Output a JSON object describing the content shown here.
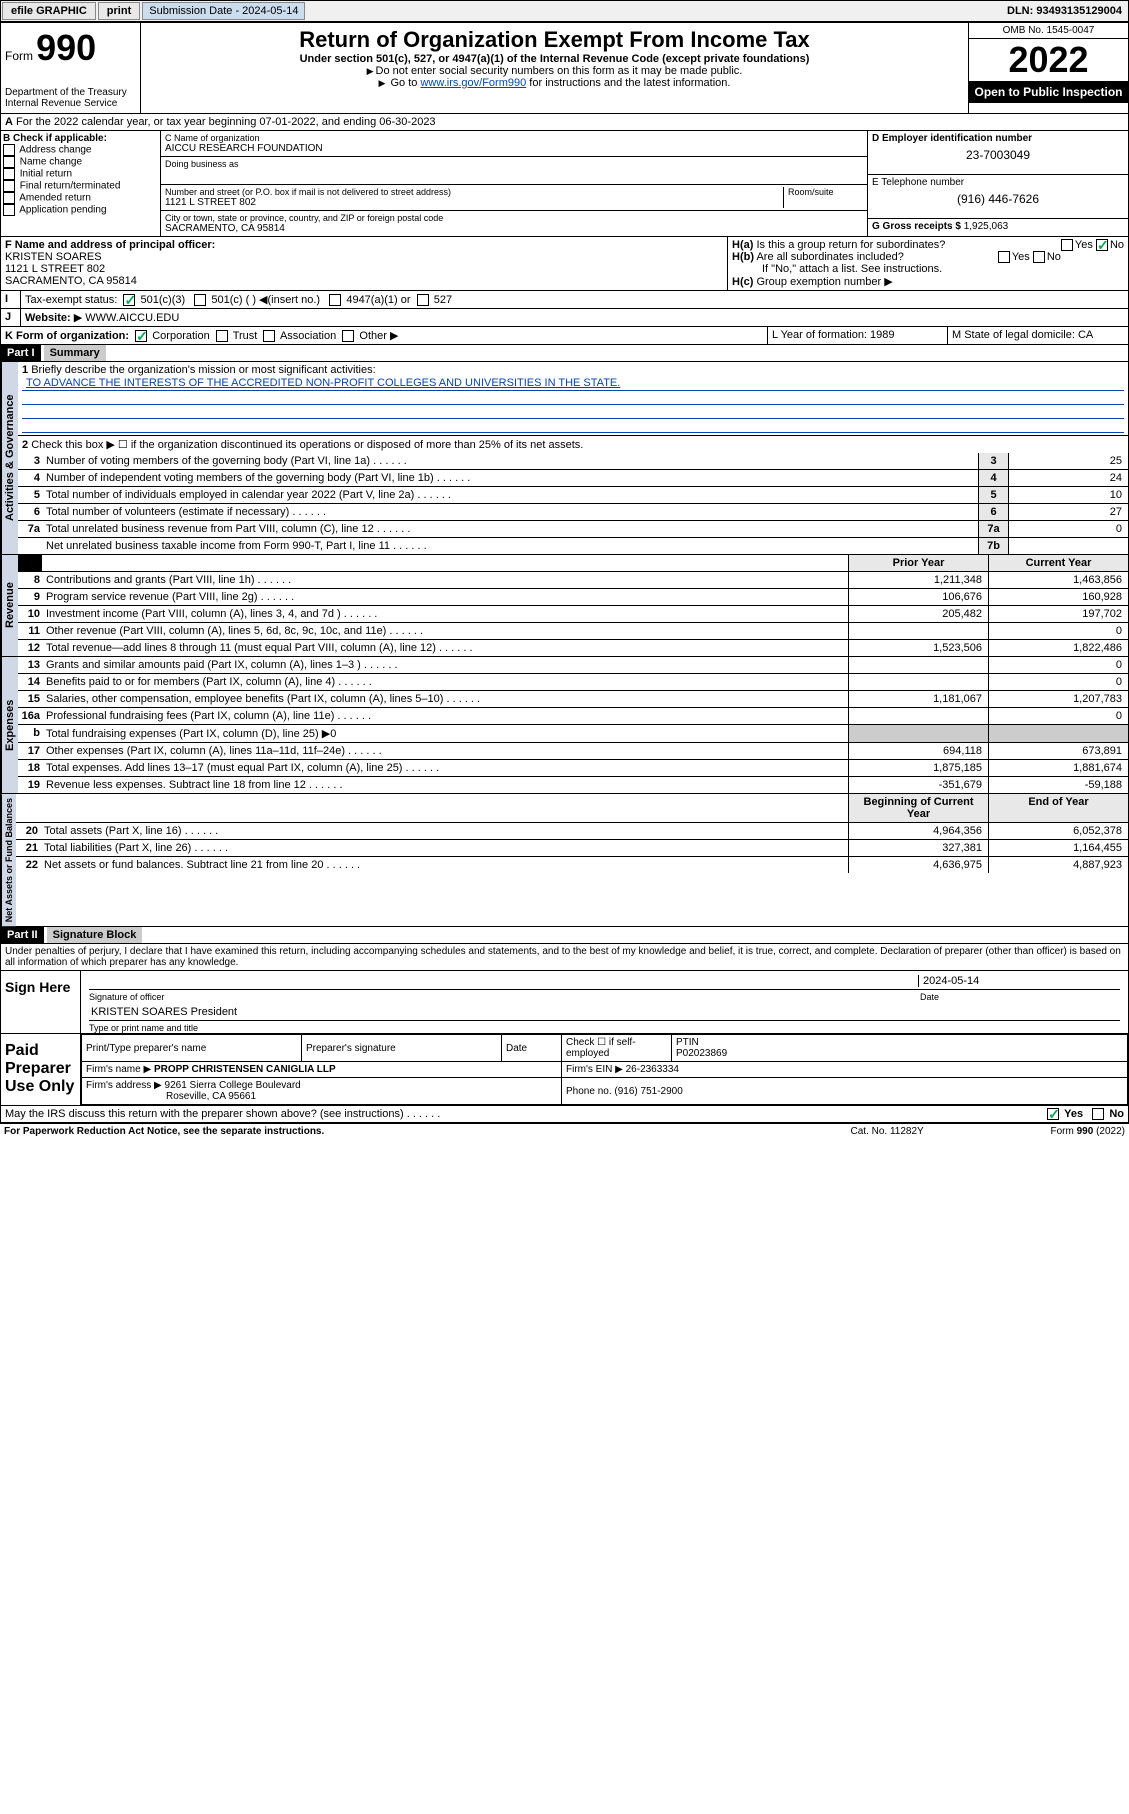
{
  "toolbar": {
    "efile": "efile GRAPHIC",
    "print": "print",
    "sub_date_label": "Submission Date - 2024-05-14",
    "dln": "DLN: 93493135129004"
  },
  "header": {
    "form": "Form",
    "formnum": "990",
    "dept": "Department of the Treasury",
    "irs": "Internal Revenue Service",
    "title": "Return of Organization Exempt From Income Tax",
    "sub1": "Under section 501(c), 527, or 4947(a)(1) of the Internal Revenue Code (except private foundations)",
    "sub2": "Do not enter social security numbers on this form as it may be made public.",
    "sub3_pre": "Go to ",
    "sub3_link": "www.irs.gov/Form990",
    "sub3_post": " for instructions and the latest information.",
    "omb": "OMB No. 1545-0047",
    "year": "2022",
    "open": "Open to Public Inspection"
  },
  "period": {
    "line_a": "For the 2022 calendar year, or tax year beginning 07-01-2022",
    "line_a2": ", and ending 06-30-2023"
  },
  "boxB": {
    "label": "B Check if applicable:",
    "items": [
      "Address change",
      "Name change",
      "Initial return",
      "Final return/terminated",
      "Amended return",
      "Application pending"
    ]
  },
  "boxC": {
    "name_lbl": "C Name of organization",
    "name": "AICCU RESEARCH FOUNDATION",
    "dba_lbl": "Doing business as",
    "addr_lbl": "Number and street (or P.O. box if mail is not delivered to street address)",
    "room_lbl": "Room/suite",
    "addr": "1121 L STREET 802",
    "city_lbl": "City or town, state or province, country, and ZIP or foreign postal code",
    "city": "SACRAMENTO, CA  95814"
  },
  "boxD": {
    "lbl": "D Employer identification number",
    "val": "23-7003049"
  },
  "boxE": {
    "lbl": "E Telephone number",
    "val": "(916) 446-7626"
  },
  "boxG": {
    "lbl": "G Gross receipts $",
    "val": "1,925,063"
  },
  "boxF": {
    "lbl": "F Name and address of principal officer:",
    "name": "KRISTEN SOARES",
    "addr1": "1121 L STREET 802",
    "addr2": "SACRAMENTO, CA  95814"
  },
  "boxH": {
    "ha": "Is this a group return for subordinates?",
    "hb": "Are all subordinates included?",
    "hn": "If \"No,\" attach a list. See instructions.",
    "hc": "Group exemption number",
    "yes": "Yes",
    "no": "No"
  },
  "boxI": {
    "lbl": "Tax-exempt status:",
    "a": "501(c)(3)",
    "b": "501(c) (  )",
    "b2": "(insert no.)",
    "c": "4947(a)(1) or",
    "d": "527"
  },
  "boxJ": {
    "lbl": "Website:",
    "val": "WWW.AICCU.EDU"
  },
  "boxK": {
    "lbl": "K Form of organization:",
    "a": "Corporation",
    "b": "Trust",
    "c": "Association",
    "d": "Other"
  },
  "boxL": {
    "lbl": "L Year of formation: 1989"
  },
  "boxM": {
    "lbl": "M State of legal domicile: CA"
  },
  "part1": {
    "hdr": "Part I",
    "title": "Summary",
    "q1a": "Briefly describe the organization's mission or most significant activities:",
    "q1b": "TO ADVANCE THE INTERESTS OF THE ACCREDITED NON-PROFIT COLLEGES AND UNIVERSITIES IN THE STATE.",
    "q2": "Check this box ▶ ☐ if the organization discontinued its operations or disposed of more than 25% of its net assets.",
    "lines_gov": [
      {
        "n": "3",
        "t": "Number of voting members of the governing body (Part VI, line 1a)",
        "b": "3",
        "v": "25"
      },
      {
        "n": "4",
        "t": "Number of independent voting members of the governing body (Part VI, line 1b)",
        "b": "4",
        "v": "24"
      },
      {
        "n": "5",
        "t": "Total number of individuals employed in calendar year 2022 (Part V, line 2a)",
        "b": "5",
        "v": "10"
      },
      {
        "n": "6",
        "t": "Total number of volunteers (estimate if necessary)",
        "b": "6",
        "v": "27"
      },
      {
        "n": "7a",
        "t": "Total unrelated business revenue from Part VIII, column (C), line 12",
        "b": "7a",
        "v": "0"
      },
      {
        "n": "",
        "t": "Net unrelated business taxable income from Form 990-T, Part I, line 11",
        "b": "7b",
        "v": ""
      }
    ],
    "col_prior": "Prior Year",
    "col_curr": "Current Year",
    "lines_rev": [
      {
        "n": "8",
        "t": "Contributions and grants (Part VIII, line 1h)",
        "p": "1,211,348",
        "c": "1,463,856"
      },
      {
        "n": "9",
        "t": "Program service revenue (Part VIII, line 2g)",
        "p": "106,676",
        "c": "160,928"
      },
      {
        "n": "10",
        "t": "Investment income (Part VIII, column (A), lines 3, 4, and 7d )",
        "p": "205,482",
        "c": "197,702"
      },
      {
        "n": "11",
        "t": "Other revenue (Part VIII, column (A), lines 5, 6d, 8c, 9c, 10c, and 11e)",
        "p": "",
        "c": "0"
      },
      {
        "n": "12",
        "t": "Total revenue—add lines 8 through 11 (must equal Part VIII, column (A), line 12)",
        "p": "1,523,506",
        "c": "1,822,486"
      }
    ],
    "lines_exp": [
      {
        "n": "13",
        "t": "Grants and similar amounts paid (Part IX, column (A), lines 1–3 )",
        "p": "",
        "c": "0"
      },
      {
        "n": "14",
        "t": "Benefits paid to or for members (Part IX, column (A), line 4)",
        "p": "",
        "c": "0"
      },
      {
        "n": "15",
        "t": "Salaries, other compensation, employee benefits (Part IX, column (A), lines 5–10)",
        "p": "1,181,067",
        "c": "1,207,783"
      },
      {
        "n": "16a",
        "t": "Professional fundraising fees (Part IX, column (A), line 11e)",
        "p": "",
        "c": "0"
      },
      {
        "n": "b",
        "t": "Total fundraising expenses (Part IX, column (D), line 25) ▶0",
        "p": null,
        "c": null
      },
      {
        "n": "17",
        "t": "Other expenses (Part IX, column (A), lines 11a–11d, 11f–24e)",
        "p": "694,118",
        "c": "673,891"
      },
      {
        "n": "18",
        "t": "Total expenses. Add lines 13–17 (must equal Part IX, column (A), line 25)",
        "p": "1,875,185",
        "c": "1,881,674"
      },
      {
        "n": "19",
        "t": "Revenue less expenses. Subtract line 18 from line 12",
        "p": "-351,679",
        "c": "-59,188"
      }
    ],
    "col_beg": "Beginning of Current Year",
    "col_end": "End of Year",
    "lines_net": [
      {
        "n": "20",
        "t": "Total assets (Part X, line 16)",
        "p": "4,964,356",
        "c": "6,052,378"
      },
      {
        "n": "21",
        "t": "Total liabilities (Part X, line 26)",
        "p": "327,381",
        "c": "1,164,455"
      },
      {
        "n": "22",
        "t": "Net assets or fund balances. Subtract line 21 from line 20",
        "p": "4,636,975",
        "c": "4,887,923"
      }
    ],
    "vlab_gov": "Activities & Governance",
    "vlab_rev": "Revenue",
    "vlab_exp": "Expenses",
    "vlab_net": "Net Assets or Fund Balances"
  },
  "part2": {
    "hdr": "Part II",
    "title": "Signature Block",
    "decl": "Under penalties of perjury, I declare that I have examined this return, including accompanying schedules and statements, and to the best of my knowledge and belief, it is true, correct, and complete. Declaration of preparer (other than officer) is based on all information of which preparer has any knowledge.",
    "sign_here": "Sign Here",
    "sig_officer": "Signature of officer",
    "sig_date": "Date",
    "sig_date_val": "2024-05-14",
    "sig_name": "KRISTEN SOARES  President",
    "sig_name_lbl": "Type or print name and title",
    "paid": "Paid Preparer Use Only",
    "prep_name_lbl": "Print/Type preparer's name",
    "prep_sig_lbl": "Preparer's signature",
    "prep_date_lbl": "Date",
    "prep_check": "Check ☐ if self-employed",
    "ptin_lbl": "PTIN",
    "ptin": "P02023869",
    "firm_name_lbl": "Firm's name  ▶",
    "firm_name": "PROPP CHRISTENSEN CANIGLIA LLP",
    "firm_ein_lbl": "Firm's EIN ▶",
    "firm_ein": "26-2363334",
    "firm_addr_lbl": "Firm's address ▶",
    "firm_addr1": "9261 Sierra College Boulevard",
    "firm_addr2": "Roseville, CA  95661",
    "phone_lbl": "Phone no.",
    "phone": "(916) 751-2900",
    "discuss": "May the IRS discuss this return with the preparer shown above? (see instructions)"
  },
  "footer": {
    "pra": "For Paperwork Reduction Act Notice, see the separate instructions.",
    "cat": "Cat. No. 11282Y",
    "form": "Form 990 (2022)"
  }
}
